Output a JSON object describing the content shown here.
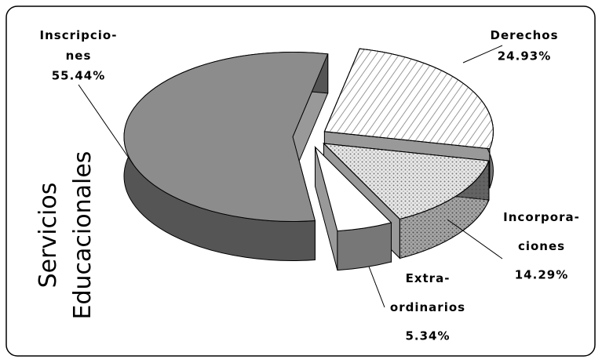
{
  "chart_data": {
    "type": "pie",
    "title": "Servicios\nEducacionales",
    "categories": [
      "Derechos",
      "Incorpora-\nciones",
      "Extra-\nordinarios",
      "Inscripcio-\nnes"
    ],
    "values": [
      24.93,
      14.29,
      5.34,
      55.44
    ],
    "value_labels": [
      "24.93%",
      "14.29%",
      "5.34%",
      "55.44%"
    ],
    "colors": [
      "#ffffff",
      "#e8e8e8",
      "#ffffff",
      "#8c8c8c"
    ]
  }
}
